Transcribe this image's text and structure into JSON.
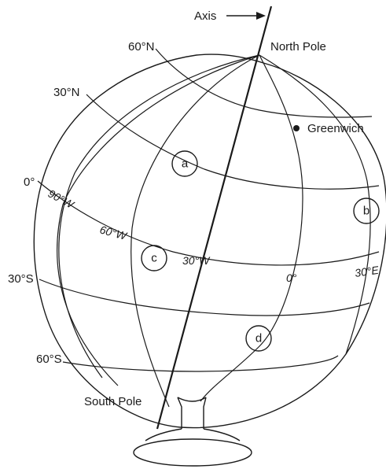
{
  "labels": {
    "axis": "Axis",
    "north_pole": "North Pole",
    "south_pole": "South Pole",
    "greenwich": "Greenwich"
  },
  "latitudes": {
    "lat_60n": "60°N",
    "lat_30n": "30°N",
    "lat_0": "0°",
    "lat_30s": "30°S",
    "lat_60s": "60°S"
  },
  "longitudes": {
    "lon_90w": "90°W",
    "lon_60w": "60°W",
    "lon_30w": "30°W",
    "lon_0": "0°",
    "lon_30e": "30°E"
  },
  "markers": {
    "a": "a",
    "b": "b",
    "c": "c",
    "d": "d"
  }
}
